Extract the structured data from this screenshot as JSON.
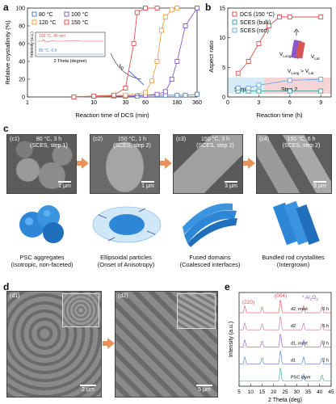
{
  "panels": {
    "a": "a",
    "b": "b",
    "c": "c",
    "d": "d",
    "e": "e"
  },
  "panel_a": {
    "ylabel": "Relative crystallinity (%)",
    "xlabel": "Reaction time of DCS (min)",
    "yticks": [
      "0",
      "20",
      "40",
      "60",
      "80",
      "100"
    ],
    "xticks": [
      "1",
      "10",
      "30",
      "60",
      "180",
      "360"
    ],
    "legend": [
      "80 °C",
      "100 °C",
      "120 °C",
      "150 °C"
    ],
    "inset_ylabel": "Intensity (a.u.)",
    "inset_xlabel": "2 Theta (degree)",
    "inset_top": "150 °C, 45 min",
    "inset_bottom": "80 °C, 6 h",
    "t0_label": "t",
    "t0_sub": "0",
    "colors": {
      "80": "#4f7fc7",
      "100": "#8a57c8",
      "120": "#f0a04a",
      "150": "#d9534f"
    }
  },
  "panel_b": {
    "ylabel": "Aspect ratio",
    "xlabel": "Reaction time (h)",
    "yticks": [
      "0",
      "5",
      "10",
      "15"
    ],
    "xticks": [
      "0",
      "3",
      "6",
      "9"
    ],
    "legend": [
      "DCS (150 °C)",
      "SCES (bulk)",
      "SCES (rod)"
    ],
    "step1": "Step 1",
    "step2": "Step 2",
    "vlong": "V",
    "vlong_sub": "Long",
    "vlat": "V",
    "vlat_sub": "Lat",
    "ineq": "V",
    "ineq_sub1": "Long",
    "ineq_mid": " > V",
    "ineq_sub2": "Lat"
  },
  "panel_c": {
    "images": [
      {
        "id": "(c1)",
        "line1": "80 °C, 3 h",
        "line2": "(SCES, step 1)",
        "scale": "1 μm"
      },
      {
        "id": "(c2)",
        "line1": "150 °C, 1 h",
        "line2": "(SCES, step 2)",
        "scale": "1 μm"
      },
      {
        "id": "(c3)",
        "line1": "150 °C, 3 h",
        "line2": "(SCES, step 2)",
        "scale": "3 μm"
      },
      {
        "id": "(c4)",
        "line1": "150 °C, 6 h",
        "line2": "(SCES, step 2)",
        "scale": "5 μm"
      }
    ],
    "captions": [
      {
        "l1": "PSC aggregates",
        "l2": "(Isotropic, non-faceted)"
      },
      {
        "l1": "Ellipsoidal particles",
        "l2": "(Onset of Anisotropy)"
      },
      {
        "l1": "Fused domains",
        "l2": "(Coalesced interfaces)"
      },
      {
        "l1": "Bundled rod crystallites",
        "l2": "(Intergrown)"
      }
    ]
  },
  "panel_d": {
    "images": [
      {
        "id": "(d1)",
        "scale": "2 μm"
      },
      {
        "id": "(d2)",
        "scale": "5 μm"
      }
    ]
  },
  "panel_e": {
    "ylabel": "Intensity (a.u.)",
    "xlabel": "2 Theta (deg)",
    "xticks": [
      "5",
      "10",
      "15",
      "20",
      "25",
      "30",
      "35",
      "40",
      "45"
    ],
    "peak220": "(220)",
    "peak004": "(004)",
    "al2o3": "* Al",
    "al2o3_sub": "2",
    "al2o3_tail": "O",
    "al2o3_sub2": "3",
    "traces": [
      {
        "name": "d2, inset",
        "time": "6 h",
        "color": "#d9534f"
      },
      {
        "name": "d2",
        "time": "5 h",
        "color": "#c46a9b"
      },
      {
        "name": "d1, inset",
        "time": "3 h",
        "color": "#8a57c8"
      },
      {
        "name": "d1",
        "time": "2 h",
        "color": "#4f7fc7"
      },
      {
        "name": "PSC layer",
        "time": "",
        "color": "#3aa0a0"
      }
    ]
  },
  "chart_data": [
    {
      "type": "line",
      "title": "",
      "xlabel": "Reaction time of DCS (min)",
      "ylabel": "Relative crystallinity (%)",
      "xscale": "log",
      "xlim": [
        1,
        360
      ],
      "ylim": [
        0,
        100
      ],
      "legend_position": "top-left",
      "series": [
        {
          "name": "80 °C",
          "x": [
            5,
            10,
            20,
            30,
            45,
            60,
            90,
            120,
            180,
            240,
            360
          ],
          "y": [
            0,
            1,
            1,
            1,
            1,
            2,
            2,
            2,
            2,
            2,
            3
          ]
        },
        {
          "name": "100 °C",
          "x": [
            5,
            30,
            60,
            90,
            120,
            150,
            180,
            240,
            360
          ],
          "y": [
            0,
            1,
            2,
            3,
            6,
            20,
            40,
            80,
            100
          ]
        },
        {
          "name": "120 °C",
          "x": [
            5,
            30,
            60,
            75,
            90,
            105,
            120,
            150,
            180
          ],
          "y": [
            0,
            2,
            5,
            18,
            40,
            75,
            90,
            98,
            100
          ]
        },
        {
          "name": "150 °C",
          "x": [
            5,
            10,
            20,
            30,
            40,
            45,
            60,
            90
          ],
          "y": [
            0,
            1,
            2,
            10,
            60,
            95,
            100,
            100
          ]
        }
      ]
    },
    {
      "type": "line",
      "title": "",
      "xlabel": "Reaction time (h)",
      "ylabel": "Aspect ratio",
      "xlim": [
        0,
        10
      ],
      "ylim": [
        0,
        15
      ],
      "legend_position": "top-left",
      "series": [
        {
          "name": "DCS (150 °C)",
          "x": [
            1,
            2,
            3,
            4,
            5,
            6,
            9
          ],
          "y": [
            4,
            6,
            9,
            12,
            13.5,
            13.5,
            13.5
          ]
        },
        {
          "name": "SCES (bulk)",
          "x": [
            1,
            2,
            3,
            6,
            9
          ],
          "y": [
            1,
            1,
            1,
            1,
            1
          ]
        },
        {
          "name": "SCES (rod)",
          "x": [
            1,
            2,
            3,
            6,
            9
          ],
          "y": [
            1.5,
            1.5,
            2,
            2.8,
            3
          ]
        }
      ]
    },
    {
      "type": "line",
      "title": "",
      "xlabel": "2 Theta (deg)",
      "ylabel": "Intensity (a.u.)",
      "xlim": [
        5,
        45
      ],
      "series": [
        {
          "name": "6 h",
          "peaks": [
            7.5,
            15,
            23,
            33,
            41
          ]
        },
        {
          "name": "5 h",
          "peaks": [
            7.5,
            15,
            23,
            33,
            41
          ]
        },
        {
          "name": "3 h",
          "peaks": [
            7.5,
            15,
            23,
            33,
            41
          ]
        },
        {
          "name": "2 h",
          "peaks": [
            7.5,
            15,
            23,
            33,
            41
          ]
        },
        {
          "name": "PSC layer",
          "peaks": [
            23,
            33,
            41
          ]
        }
      ]
    }
  ]
}
